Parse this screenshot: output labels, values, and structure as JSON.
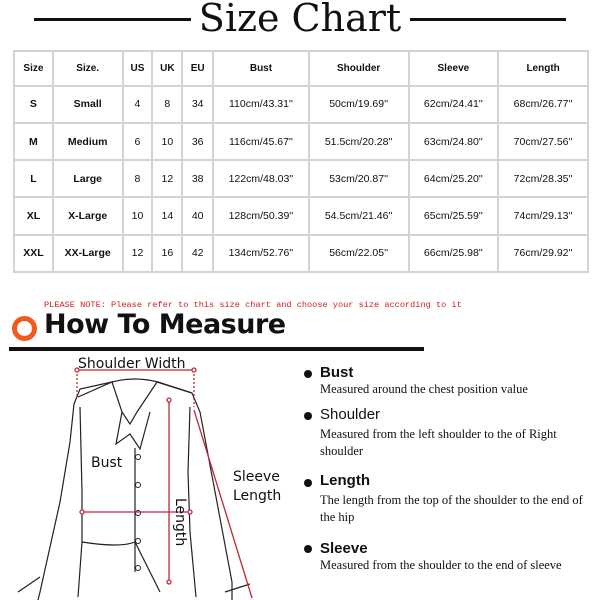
{
  "title": "Size Chart",
  "table": {
    "headers": [
      "Size",
      "Size.",
      "US",
      "UK",
      "EU",
      "Bust",
      "Shoulder",
      "Sleeve",
      "Length"
    ],
    "rows": [
      [
        "S",
        "Small",
        "4",
        "8",
        "34",
        "110cm/43.31''",
        "50cm/19.69''",
        "62cm/24.41''",
        "68cm/26.77''"
      ],
      [
        "M",
        "Medium",
        "6",
        "10",
        "36",
        "116cm/45.67''",
        "51.5cm/20.28''",
        "63cm/24.80''",
        "70cm/27.56''"
      ],
      [
        "L",
        "Large",
        "8",
        "12",
        "38",
        "122cm/48.03''",
        "53cm/20.87''",
        "64cm/25.20''",
        "72cm/28.35''"
      ],
      [
        "XL",
        "X-Large",
        "10",
        "14",
        "40",
        "128cm/50.39''",
        "54.5cm/21.46''",
        "65cm/25.59''",
        "74cm/29.13''"
      ],
      [
        "XXL",
        "XX-Large",
        "12",
        "16",
        "42",
        "134cm/52.76''",
        "56cm/22.05''",
        "66cm/25.98''",
        "76cm/29.92''"
      ]
    ]
  },
  "note": "PLEASE NOTE: Please refer to this size chart and choose your size according to it",
  "how_to_measure": "How To Measure",
  "diagram_labels": {
    "shoulder_width": "Shoulder Width",
    "bust": "Bust",
    "sleeve_length_1": "Sleeve",
    "sleeve_length_2": "Length",
    "length": "Length"
  },
  "measures": [
    {
      "name": "Bust",
      "desc": "Measured around the chest position value"
    },
    {
      "name": "Shoulder",
      "desc": "Measured from the left shoulder to the of Right shoulder"
    },
    {
      "name": "Length",
      "desc": "The length from the top of the shoulder to the end of the hip"
    },
    {
      "name": "Sleeve",
      "desc": "Measured from the shoulder to the end of sleeve"
    }
  ],
  "colors": {
    "accent": "#f05a1a",
    "note": "#d32020",
    "measure_line": "#c0283a"
  }
}
